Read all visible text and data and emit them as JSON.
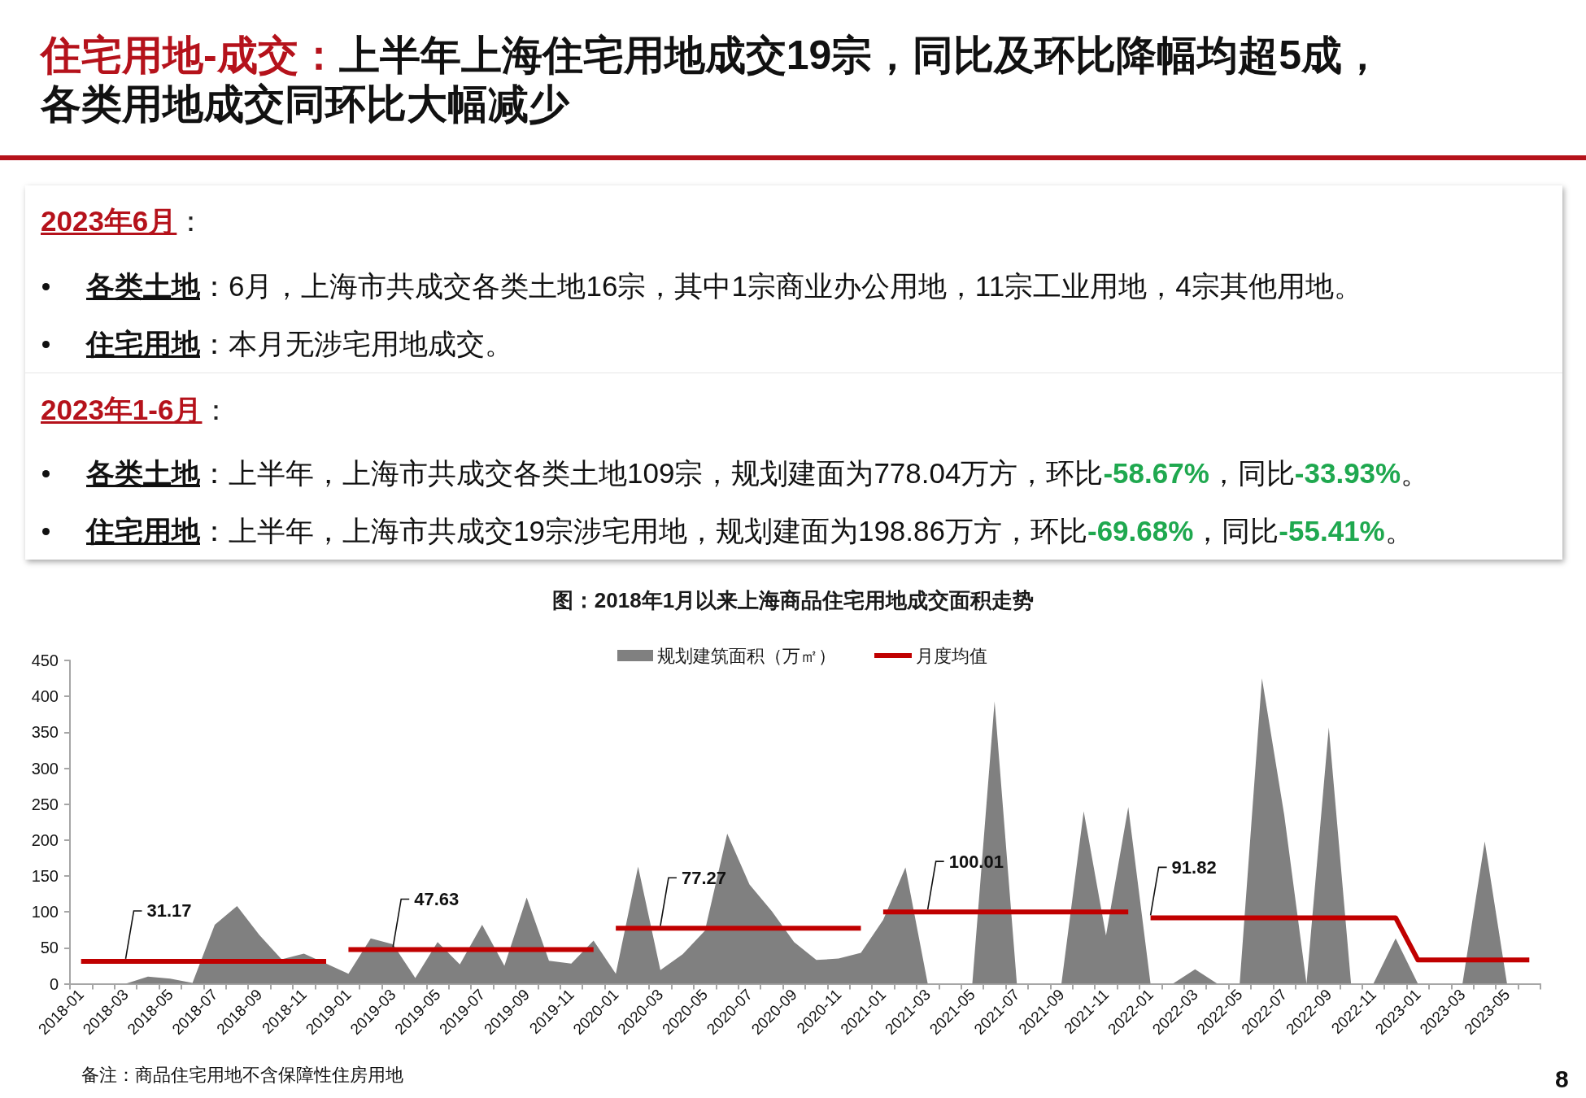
{
  "chart_data": {
    "type": "area",
    "title": "住宅用地-成交：上半年上海住宅用地成交19宗，同比及环比降幅均超5成，各类用地成交同环比大幅减少",
    "subtitle": "图：2018年1月以来上海商品住宅用地成交面积走势",
    "categories": [
      "2018-01",
      null,
      "2018-03",
      null,
      "2018-05",
      null,
      "2018-07",
      null,
      "2018-09",
      null,
      "2018-11",
      null,
      "2019-01",
      null,
      "2019-03",
      null,
      "2019-05",
      null,
      "2019-07",
      null,
      "2019-09",
      null,
      "2019-11",
      null,
      "2020-01",
      null,
      "2020-03",
      null,
      "2020-05",
      null,
      "2020-07",
      null,
      "2020-09",
      null,
      "2020-11",
      null,
      "2021-01",
      null,
      "2021-03",
      null,
      "2021-05",
      null,
      "2021-07",
      null,
      "2021-09",
      null,
      "2021-11",
      null,
      "2022-01",
      null,
      "2022-03",
      null,
      "2022-05",
      null,
      "2022-07",
      null,
      "2022-09",
      null,
      "2022-11",
      null,
      "2023-01",
      null,
      "2023-03",
      null,
      "2023-05",
      null
    ],
    "series": [
      {
        "name": "规划建筑面积（万㎡）",
        "color": "#808080",
        "values": [
          0,
          0,
          0,
          10,
          7,
          1,
          82,
          108,
          68,
          34,
          42,
          28,
          14,
          63,
          55,
          8,
          58,
          27,
          82,
          25,
          120,
          32,
          28,
          60,
          14,
          163,
          19,
          41,
          74,
          209,
          138,
          101,
          58,
          33,
          35,
          43,
          89,
          162,
          0,
          0,
          0,
          393,
          0,
          0,
          0,
          240,
          67,
          246,
          0,
          0,
          20,
          0,
          0,
          425,
          235,
          0,
          357,
          0,
          0,
          63,
          0,
          0,
          0,
          198,
          0,
          0
        ]
      },
      {
        "name": "月度均值",
        "type": "line",
        "color": "#c00000",
        "values": [
          31.17,
          31.17,
          31.17,
          31.17,
          31.17,
          31.17,
          31.17,
          31.17,
          31.17,
          31.17,
          31.17,
          31.17,
          null,
          null,
          null,
          null,
          null,
          null,
          null,
          null,
          null,
          null,
          null,
          null,
          null,
          null,
          null,
          null,
          null,
          null,
          null,
          null,
          null,
          null,
          null,
          null,
          null,
          null,
          null,
          null,
          null,
          null,
          null,
          null,
          null,
          null,
          null,
          null,
          null,
          null,
          null,
          null,
          null,
          null,
          null,
          null,
          null,
          null,
          null,
          null,
          null,
          null,
          null,
          null,
          null,
          null
        ]
      },
      {
        "type": "line",
        "color": "#c00000",
        "values": [
          null,
          null,
          null,
          null,
          null,
          null,
          null,
          null,
          null,
          null,
          null,
          null,
          47.63,
          47.63,
          47.63,
          47.63,
          47.63,
          47.63,
          47.63,
          47.63,
          47.63,
          47.63,
          47.63,
          47.63,
          null,
          null,
          null,
          null,
          null,
          null,
          null,
          null,
          null,
          null,
          null,
          null,
          null,
          null,
          null,
          null,
          null,
          null,
          null,
          null,
          null,
          null,
          null,
          null,
          null,
          null,
          null,
          null,
          null,
          null,
          null,
          null,
          null,
          null,
          null,
          null,
          null,
          null,
          null,
          null,
          null,
          null
        ]
      },
      {
        "type": "line",
        "color": "#c00000",
        "values": [
          null,
          null,
          null,
          null,
          null,
          null,
          null,
          null,
          null,
          null,
          null,
          null,
          null,
          null,
          null,
          null,
          null,
          null,
          null,
          null,
          null,
          null,
          null,
          null,
          77.27,
          77.27,
          77.27,
          77.27,
          77.27,
          77.27,
          77.27,
          77.27,
          77.27,
          77.27,
          77.27,
          77.27,
          null,
          null,
          null,
          null,
          null,
          null,
          null,
          null,
          null,
          null,
          null,
          null,
          null,
          null,
          null,
          null,
          null,
          null,
          null,
          null,
          null,
          null,
          null,
          null,
          null,
          null,
          null,
          null,
          null,
          null
        ]
      },
      {
        "type": "line",
        "color": "#c00000",
        "values": [
          null,
          null,
          null,
          null,
          null,
          null,
          null,
          null,
          null,
          null,
          null,
          null,
          null,
          null,
          null,
          null,
          null,
          null,
          null,
          null,
          null,
          null,
          null,
          null,
          null,
          null,
          null,
          null,
          null,
          null,
          null,
          null,
          null,
          null,
          null,
          null,
          100.01,
          100.01,
          100.01,
          100.01,
          100.01,
          100.01,
          100.01,
          100.01,
          100.01,
          100.01,
          100.01,
          100.01,
          null,
          null,
          null,
          null,
          null,
          null,
          null,
          null,
          null,
          null,
          null,
          null,
          null,
          null,
          null,
          null,
          null,
          null
        ]
      },
      {
        "type": "line",
        "color": "#c00000",
        "values": [
          null,
          null,
          null,
          null,
          null,
          null,
          null,
          null,
          null,
          null,
          null,
          null,
          null,
          null,
          null,
          null,
          null,
          null,
          null,
          null,
          null,
          null,
          null,
          null,
          null,
          null,
          null,
          null,
          null,
          null,
          null,
          null,
          null,
          null,
          null,
          null,
          null,
          null,
          null,
          null,
          null,
          null,
          null,
          null,
          null,
          null,
          null,
          null,
          91.82,
          91.82,
          91.82,
          91.82,
          91.82,
          91.82,
          91.82,
          91.82,
          91.82,
          91.82,
          91.82,
          91.82,
          33,
          33,
          33,
          33,
          33,
          33
        ]
      }
    ],
    "ylim": [
      0,
      450
    ],
    "yticks": [
      0,
      50,
      100,
      150,
      200,
      250,
      300,
      350,
      400,
      450
    ],
    "legend": "top",
    "marker": "none",
    "line_style": "solid",
    "annotations": [
      "2023年6月：",
      "各类土地：6月，上海市共成交各类土地16宗，其中1宗商业办公用地，11宗工业用地，4宗其他用地。",
      "住宅用地：本月无涉宅用地成交。",
      "2023年1-6月：",
      "各类土地：上半年，上海市共成交各类土地109宗，规划建面为778.04万方，环比-58.67%，同比-33.93%。",
      "住宅用地：上半年，上海市共成交19宗涉宅用地，规划建面为198.86万方，环比-69.68%，同比-55.41%。",
      "备注：商品住宅用地不含保障性住房用地",
      "8",
      {
        "text": "31.17",
        "x": "2018-03",
        "y": 31.17
      },
      {
        "text": "47.63",
        "x": "2019-03",
        "y": 47.63
      },
      {
        "text": "77.27",
        "x": "2020-03",
        "y": 77.27
      },
      {
        "text": "100.01",
        "x": "2021-03",
        "y": 100.01
      },
      {
        "text": "91.82",
        "x": "2022-01",
        "y": 91.82
      }
    ]
  }
}
